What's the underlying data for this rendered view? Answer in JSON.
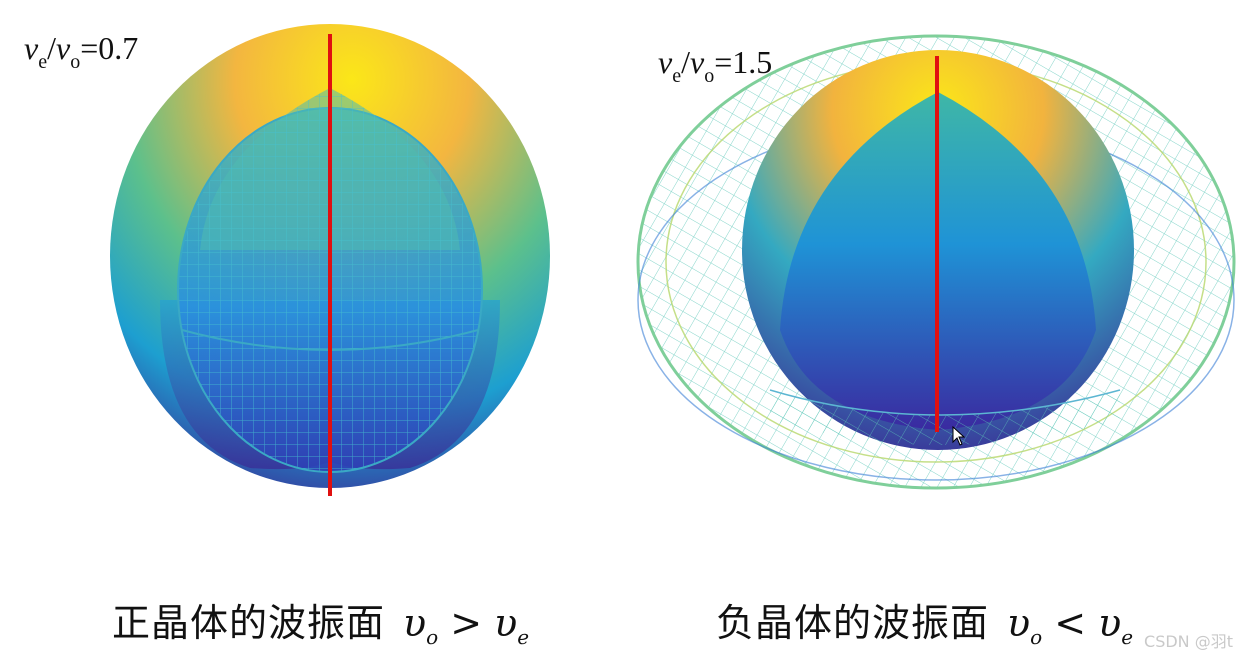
{
  "left": {
    "ratio": {
      "v1": "v",
      "sub1": "e",
      "slash": "/",
      "v2": "v",
      "sub2": "o",
      "value": "=0.7"
    },
    "caption": {
      "text": "正晶体的波振面",
      "math_a": "υ",
      "sub_a": "o",
      "op": " > ",
      "math_b": "υ",
      "sub_b": "e"
    }
  },
  "right": {
    "ratio": {
      "v1": "v",
      "sub1": "e",
      "slash": "/",
      "v2": "v",
      "sub2": "o",
      "value": "=1.5"
    },
    "caption": {
      "text": "负晶体的波振面",
      "math_a": "υ",
      "sub_a": "o",
      "op": " < ",
      "math_b": "υ",
      "sub_b": "e"
    }
  },
  "watermark": "CSDN @羽t",
  "colors": {
    "axis": "#e01010",
    "top": "#f7e81c",
    "mid": "#2ab1b5",
    "bottom": "#3b2a9a",
    "mesh": "#3bb3c6"
  }
}
